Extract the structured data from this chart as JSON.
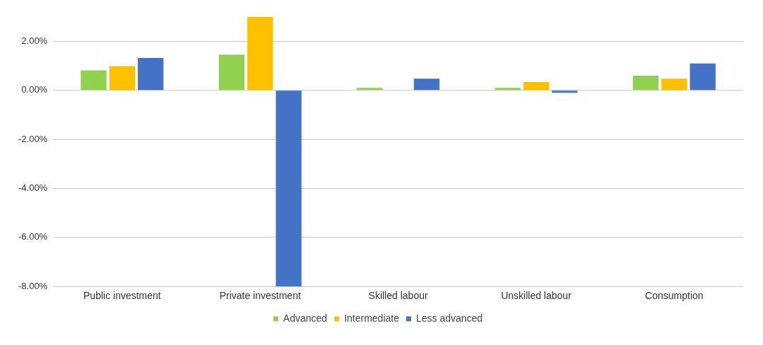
{
  "chart_data": {
    "type": "bar",
    "categories": [
      "Public investment",
      "Private investment",
      "Skilled labour",
      "Unskilled labour",
      "Consumption"
    ],
    "series": [
      {
        "name": "Advanced",
        "color": "#92d050",
        "values": [
          0.82,
          1.46,
          0.1,
          0.1,
          0.6
        ]
      },
      {
        "name": "Intermediate",
        "color": "#ffc000",
        "values": [
          0.99,
          3.0,
          0,
          0.34,
          0.48
        ]
      },
      {
        "name": "Less advanced",
        "color": "#4472c4",
        "values": [
          1.32,
          -8.0,
          0.48,
          -0.1,
          1.1
        ]
      }
    ],
    "ylim": [
      -8,
      3
    ],
    "yticks": [
      {
        "value": -8,
        "label": "-8.00%"
      },
      {
        "value": -6,
        "label": "-6.00%"
      },
      {
        "value": -4,
        "label": "-4.00%"
      },
      {
        "value": -2,
        "label": "-2.00%"
      },
      {
        "value": 0,
        "label": "0.00%"
      },
      {
        "value": 2,
        "label": "2.00%"
      }
    ],
    "grid": "y",
    "legend": "bottom"
  }
}
